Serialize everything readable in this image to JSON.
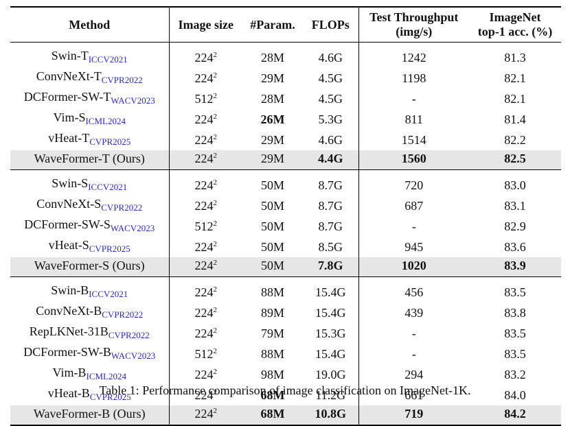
{
  "table": {
    "headers": {
      "method": "Method",
      "image_size": "Image size",
      "params": "#Param.",
      "flops": "FLOPs",
      "throughput_line1": "Test Throughput",
      "throughput_line2": "(img/s)",
      "acc_line1": "ImageNet",
      "acc_line2": "top-1 acc. (%)"
    },
    "groups": [
      [
        {
          "name": "Swin-T",
          "venue": "ICCV2021",
          "res": "224",
          "exp": "2",
          "params": "28M",
          "flops": "4.6G",
          "throughput": "1242",
          "acc": "81.3",
          "bold": []
        },
        {
          "name": "ConvNeXt-T",
          "venue": "CVPR2022",
          "res": "224",
          "exp": "2",
          "params": "29M",
          "flops": "4.5G",
          "throughput": "1198",
          "acc": "82.1",
          "bold": []
        },
        {
          "name": "DCFormer-SW-T",
          "venue": "WACV2023",
          "res": "512",
          "exp": "2",
          "params": "28M",
          "flops": "4.5G",
          "throughput": "-",
          "acc": "82.1",
          "bold": []
        },
        {
          "name": "Vim-S",
          "venue": "ICML2024",
          "res": "224",
          "exp": "2",
          "params": "26M",
          "flops": "5.3G",
          "throughput": "811",
          "acc": "81.4",
          "bold": [
            "params"
          ]
        },
        {
          "name": "vHeat-T",
          "venue": "CVPR2025",
          "res": "224",
          "exp": "2",
          "params": "29M",
          "flops": "4.6G",
          "throughput": "1514",
          "acc": "82.2",
          "bold": []
        },
        {
          "name": "WaveFormer-T (Ours)",
          "venue": "",
          "res": "224",
          "exp": "2",
          "params": "29M",
          "flops": "4.4G",
          "throughput": "1560",
          "acc": "82.5",
          "bold": [
            "flops",
            "throughput",
            "acc"
          ],
          "ours": true
        }
      ],
      [
        {
          "name": "Swin-S",
          "venue": "ICCV2021",
          "res": "224",
          "exp": "2",
          "params": "50M",
          "flops": "8.7G",
          "throughput": "720",
          "acc": "83.0",
          "bold": []
        },
        {
          "name": "ConvNeXt-S",
          "venue": "CVPR2022",
          "res": "224",
          "exp": "2",
          "params": "50M",
          "flops": "8.7G",
          "throughput": "687",
          "acc": "83.1",
          "bold": []
        },
        {
          "name": "DCFormer-SW-S",
          "venue": "WACV2023",
          "res": "512",
          "exp": "2",
          "params": "50M",
          "flops": "8.7G",
          "throughput": "-",
          "acc": "82.9",
          "bold": []
        },
        {
          "name": "vHeat-S",
          "venue": "CVPR2025",
          "res": "224",
          "exp": "2",
          "params": "50M",
          "flops": "8.5G",
          "throughput": "945",
          "acc": "83.6",
          "bold": []
        },
        {
          "name": "WaveFormer-S (Ours)",
          "venue": "",
          "res": "224",
          "exp": "2",
          "params": "50M",
          "flops": "7.8G",
          "throughput": "1020",
          "acc": "83.9",
          "bold": [
            "flops",
            "throughput",
            "acc"
          ],
          "ours": true
        }
      ],
      [
        {
          "name": "Swin-B",
          "venue": "ICCV2021",
          "res": "224",
          "exp": "2",
          "params": "88M",
          "flops": "15.4G",
          "throughput": "456",
          "acc": "83.5",
          "bold": []
        },
        {
          "name": "ConvNeXt-B",
          "venue": "CVPR2022",
          "res": "224",
          "exp": "2",
          "params": "89M",
          "flops": "15.4G",
          "throughput": "439",
          "acc": "83.8",
          "bold": []
        },
        {
          "name": "RepLKNet-31B",
          "venue": "CVPR2022",
          "res": "224",
          "exp": "2",
          "params": "79M",
          "flops": "15.3G",
          "throughput": "-",
          "acc": "83.5",
          "bold": []
        },
        {
          "name": "DCFormer-SW-B",
          "venue": "WACV2023",
          "res": "512",
          "exp": "2",
          "params": "88M",
          "flops": "15.4G",
          "throughput": "-",
          "acc": "83.5",
          "bold": []
        },
        {
          "name": "Vim-B",
          "venue": "ICML2024",
          "res": "224",
          "exp": "2",
          "params": "98M",
          "flops": "19.0G",
          "throughput": "294",
          "acc": "83.2",
          "bold": []
        },
        {
          "name": "vHeat-B",
          "venue": "CVPR2025",
          "res": "224",
          "exp": "2",
          "params": "68M",
          "flops": "11.2G",
          "throughput": "661",
          "acc": "84.0",
          "bold": [
            "params"
          ]
        },
        {
          "name": "WaveFormer-B (Ours)",
          "venue": "",
          "res": "224",
          "exp": "2",
          "params": "68M",
          "flops": "10.8G",
          "throughput": "719",
          "acc": "84.2",
          "bold": [
            "params",
            "flops",
            "throughput",
            "acc"
          ],
          "ours": true
        }
      ]
    ]
  },
  "caption": "Table 1: Performance comparison of image classification on ImageNet-1K."
}
